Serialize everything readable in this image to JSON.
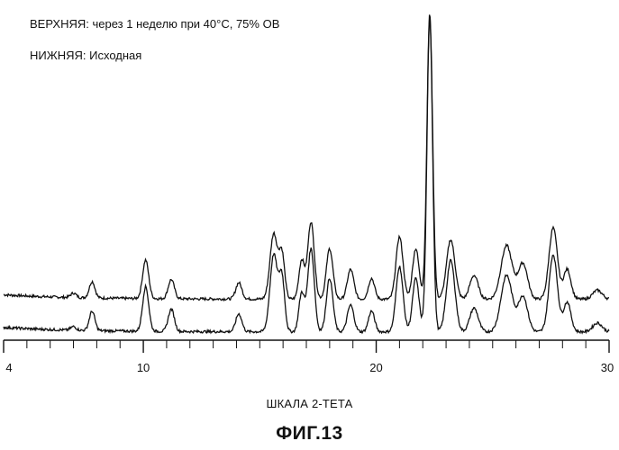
{
  "legend": {
    "top": "ВЕРХНЯЯ: через  1 неделю при 40°С, 75% ОВ",
    "bottom": "НИЖНЯЯ: Исходная"
  },
  "caption": "ФИГ.13",
  "chart_data": {
    "type": "line",
    "title": "",
    "xlabel": "ШКАЛА 2-ТЕТА",
    "ylabel": "",
    "xlim": [
      4,
      30
    ],
    "x_ticks": [
      4,
      10,
      20,
      30
    ],
    "x_tick_labels": [
      "4",
      "10",
      "20",
      "30"
    ],
    "grid": false,
    "series": [
      {
        "name": "ВЕРХНЯЯ",
        "baseline": 4,
        "offset": 8,
        "peaks": [
          [
            7.0,
            1.5,
            0.12
          ],
          [
            7.8,
            5.5,
            0.12
          ],
          [
            10.1,
            13,
            0.13
          ],
          [
            11.2,
            6.5,
            0.13
          ],
          [
            14.1,
            5.5,
            0.13
          ],
          [
            15.6,
            22,
            0.16
          ],
          [
            15.95,
            15,
            0.12
          ],
          [
            16.8,
            13,
            0.12
          ],
          [
            17.2,
            26,
            0.14
          ],
          [
            18.0,
            17,
            0.14
          ],
          [
            18.9,
            10,
            0.14
          ],
          [
            19.8,
            7,
            0.13
          ],
          [
            21.0,
            21,
            0.15
          ],
          [
            21.7,
            17,
            0.14
          ],
          [
            22.3,
            96,
            0.12
          ],
          [
            23.2,
            20,
            0.18
          ],
          [
            24.2,
            8,
            0.18
          ],
          [
            25.6,
            18,
            0.24
          ],
          [
            26.3,
            12,
            0.2
          ],
          [
            27.6,
            24,
            0.18
          ],
          [
            28.2,
            10,
            0.16
          ],
          [
            29.5,
            3,
            0.2
          ]
        ]
      },
      {
        "name": "НИЖНЯЯ",
        "baseline": 1,
        "offset": 0,
        "peaks": [
          [
            7.0,
            1.2,
            0.12
          ],
          [
            7.8,
            6.5,
            0.12
          ],
          [
            10.1,
            15,
            0.13
          ],
          [
            11.2,
            7.5,
            0.13
          ],
          [
            14.1,
            6,
            0.13
          ],
          [
            15.6,
            26,
            0.16
          ],
          [
            15.95,
            18,
            0.12
          ],
          [
            16.8,
            13,
            0.12
          ],
          [
            17.2,
            28,
            0.14
          ],
          [
            18.0,
            18,
            0.14
          ],
          [
            18.9,
            9,
            0.14
          ],
          [
            19.8,
            7,
            0.13
          ],
          [
            21.0,
            22,
            0.15
          ],
          [
            21.7,
            18,
            0.14
          ],
          [
            22.3,
            106,
            0.12
          ],
          [
            23.2,
            24,
            0.18
          ],
          [
            24.2,
            8,
            0.18
          ],
          [
            25.6,
            19,
            0.24
          ],
          [
            26.3,
            12,
            0.2
          ],
          [
            27.6,
            26,
            0.18
          ],
          [
            28.2,
            10,
            0.16
          ],
          [
            29.5,
            3,
            0.2
          ]
        ]
      }
    ]
  }
}
